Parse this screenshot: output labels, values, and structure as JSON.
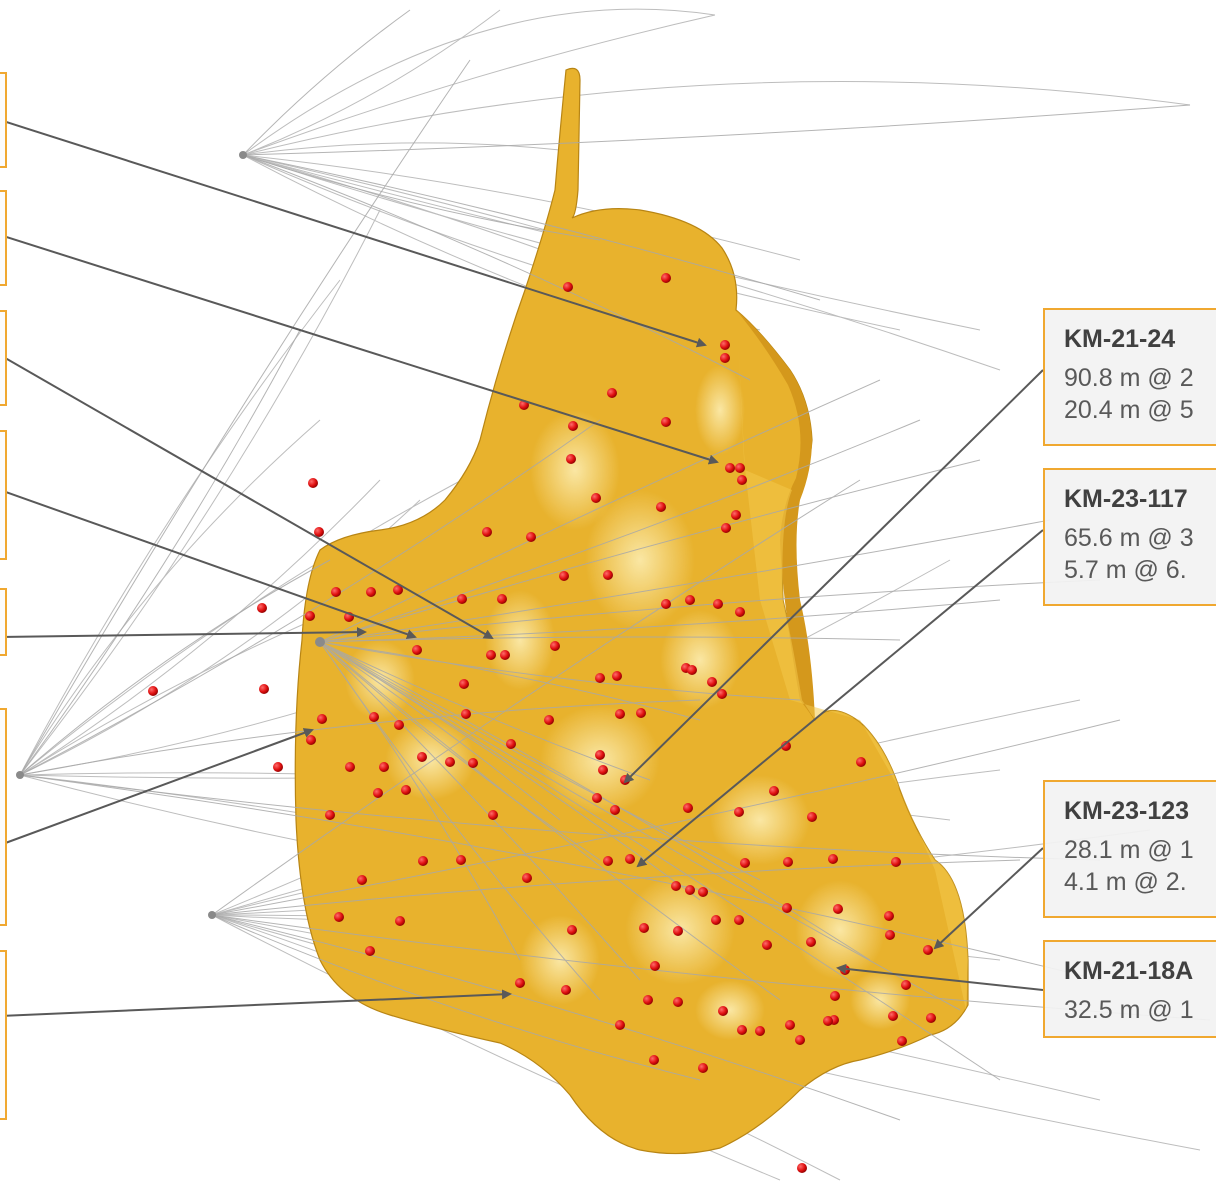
{
  "model": {
    "body_color": "#e6b12e",
    "body_shade": "#c8901a",
    "highlight_color": "#fbe69a",
    "intercept_color": "#e01010",
    "drillhole_color": "#b4b4b4",
    "arrow_color": "#595959",
    "frame_color": "#f0a830"
  },
  "callouts": [
    {
      "hole": "KM-21-24",
      "lines": [
        "90.8 m @ 2",
        "20.4 m @ 5"
      ]
    },
    {
      "hole": "KM-23-117",
      "lines": [
        "65.6 m @ 3",
        "5.7 m @ 6."
      ]
    },
    {
      "hole": "KM-23-123",
      "lines": [
        "28.1 m @ 1",
        "4.1 m @ 2."
      ]
    },
    {
      "hole": "KM-21-18A",
      "lines": [
        "32.5 m @ 1"
      ]
    }
  ],
  "left_callouts": [
    {},
    {},
    {},
    {},
    {},
    {},
    {}
  ]
}
